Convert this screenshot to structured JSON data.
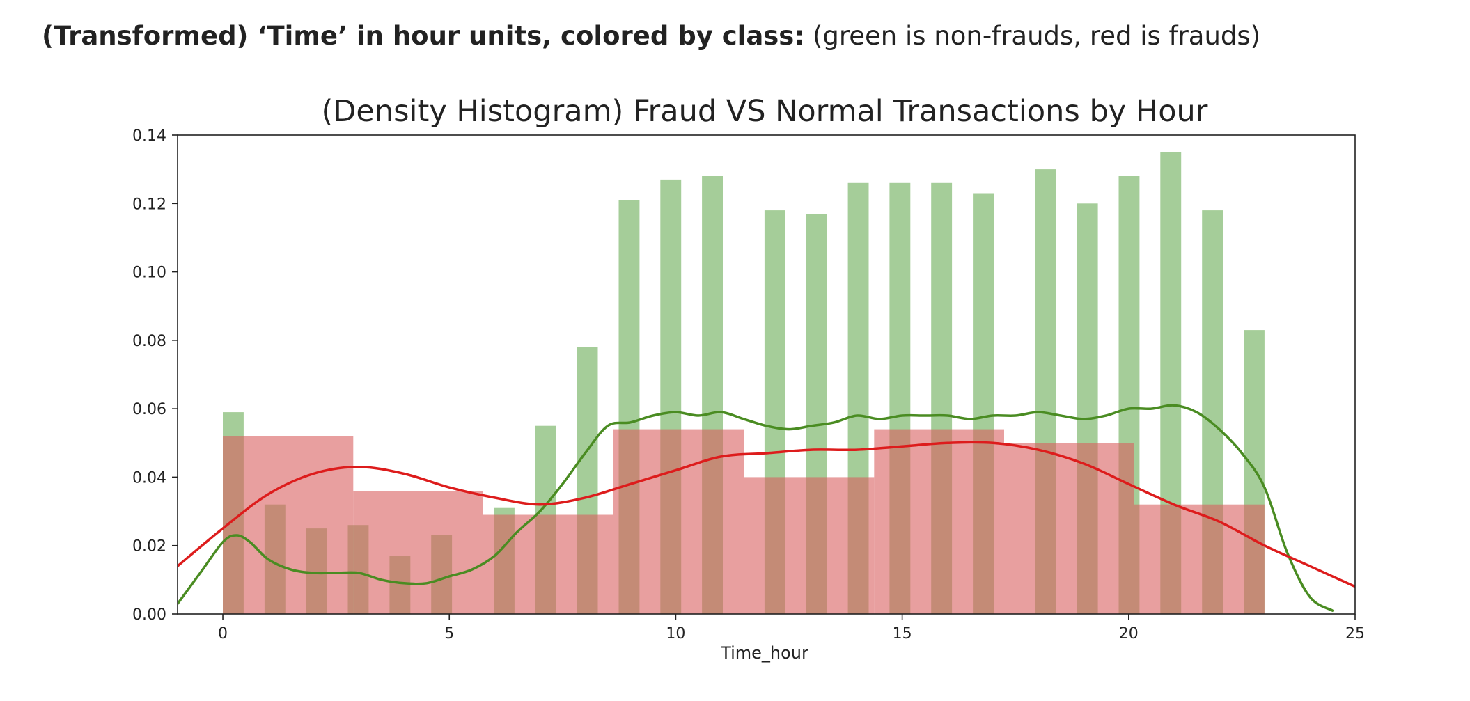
{
  "caption": {
    "bold_text": "(Transformed) ‘Time’ in hour units, colored by class:",
    "normal_text": "(green is non-frauds, red is frauds)"
  },
  "colors": {
    "normal_bar": "#7fb86e",
    "normal_line": "#4a8c22",
    "fraud_bar": "#d95f5f",
    "fraud_line": "#dd1c1c"
  },
  "chart_data": {
    "type": "bar",
    "title": "(Density Histogram) Fraud VS Normal Transactions by Hour",
    "xlabel": "Time_hour",
    "ylabel": "",
    "xlim": [
      -1,
      25
    ],
    "ylim": [
      0,
      0.14
    ],
    "xticks": [
      0,
      5,
      10,
      15,
      20,
      25
    ],
    "yticks": [
      "0.00",
      "0.02",
      "0.04",
      "0.06",
      "0.08",
      "0.10",
      "0.12",
      "0.14"
    ],
    "grid": false,
    "series": [
      {
        "kind": "histogram",
        "bins": [
          {
            "x0": 0.0,
            "x1": 0.46,
            "value": 0.059
          },
          {
            "x0": 0.92,
            "x1": 1.38,
            "value": 0.032
          },
          {
            "x0": 1.84,
            "x1": 2.3,
            "value": 0.025
          },
          {
            "x0": 2.76,
            "x1": 3.22,
            "value": 0.026
          },
          {
            "x0": 3.68,
            "x1": 4.14,
            "value": 0.017
          },
          {
            "x0": 4.6,
            "x1": 5.06,
            "value": 0.023
          },
          {
            "x0": 5.98,
            "x1": 6.44,
            "value": 0.031
          },
          {
            "x0": 6.9,
            "x1": 7.36,
            "value": 0.055
          },
          {
            "x0": 7.82,
            "x1": 8.28,
            "value": 0.078
          },
          {
            "x0": 8.74,
            "x1": 9.2,
            "value": 0.121
          },
          {
            "x0": 9.66,
            "x1": 10.12,
            "value": 0.127
          },
          {
            "x0": 10.58,
            "x1": 11.04,
            "value": 0.128
          },
          {
            "x0": 11.96,
            "x1": 12.42,
            "value": 0.118
          },
          {
            "x0": 12.88,
            "x1": 13.34,
            "value": 0.117
          },
          {
            "x0": 13.8,
            "x1": 14.26,
            "value": 0.126
          },
          {
            "x0": 14.72,
            "x1": 15.18,
            "value": 0.126
          },
          {
            "x0": 15.64,
            "x1": 16.1,
            "value": 0.126
          },
          {
            "x0": 16.56,
            "x1": 17.02,
            "value": 0.123
          },
          {
            "x0": 17.94,
            "x1": 18.4,
            "value": 0.13
          },
          {
            "x0": 18.86,
            "x1": 19.32,
            "value": 0.12
          },
          {
            "x0": 19.78,
            "x1": 20.24,
            "value": 0.128
          },
          {
            "x0": 20.7,
            "x1": 21.16,
            "value": 0.135
          },
          {
            "x0": 21.62,
            "x1": 22.08,
            "value": 0.118
          },
          {
            "x0": 22.54,
            "x1": 23.0,
            "value": 0.083
          }
        ]
      },
      {
        "kind": "histogram",
        "bins": [
          {
            "x0": 0.0,
            "x1": 2.88,
            "value": 0.052
          },
          {
            "x0": 2.88,
            "x1": 5.75,
            "value": 0.036
          },
          {
            "x0": 5.75,
            "x1": 8.62,
            "value": 0.029
          },
          {
            "x0": 8.62,
            "x1": 11.5,
            "value": 0.054
          },
          {
            "x0": 11.5,
            "x1": 14.38,
            "value": 0.04
          },
          {
            "x0": 14.38,
            "x1": 17.25,
            "value": 0.054
          },
          {
            "x0": 17.25,
            "x1": 20.12,
            "value": 0.05
          },
          {
            "x0": 20.12,
            "x1": 23.0,
            "value": 0.032
          }
        ]
      },
      {
        "kind": "kde",
        "x": [
          -1,
          -0.5,
          0,
          0.3,
          0.6,
          1,
          1.5,
          2,
          2.5,
          3,
          3.5,
          4,
          4.5,
          5,
          5.5,
          6,
          6.5,
          7,
          7.5,
          8,
          8.5,
          9,
          9.5,
          10,
          10.5,
          11,
          11.5,
          12,
          12.5,
          13,
          13.5,
          14,
          14.5,
          15,
          15.5,
          16,
          16.5,
          17,
          17.5,
          18,
          18.5,
          19,
          19.5,
          20,
          20.5,
          21,
          21.5,
          22,
          22.5,
          23,
          23.5,
          24,
          24.5
        ],
        "y": [
          0.003,
          0.012,
          0.021,
          0.023,
          0.021,
          0.016,
          0.013,
          0.012,
          0.012,
          0.012,
          0.01,
          0.009,
          0.009,
          0.011,
          0.013,
          0.017,
          0.024,
          0.03,
          0.038,
          0.047,
          0.055,
          0.056,
          0.058,
          0.059,
          0.058,
          0.059,
          0.057,
          0.055,
          0.054,
          0.055,
          0.056,
          0.058,
          0.057,
          0.058,
          0.058,
          0.058,
          0.057,
          0.058,
          0.058,
          0.059,
          0.058,
          0.057,
          0.058,
          0.06,
          0.06,
          0.061,
          0.059,
          0.054,
          0.047,
          0.037,
          0.018,
          0.005,
          0.001
        ]
      },
      {
        "kind": "kde",
        "x": [
          -1,
          0,
          1,
          2,
          3,
          4,
          5,
          6,
          7,
          8,
          9,
          10,
          11,
          12,
          13,
          14,
          15,
          16,
          17,
          18,
          19,
          20,
          21,
          22,
          23,
          24,
          25
        ],
        "y": [
          0.014,
          0.025,
          0.035,
          0.041,
          0.043,
          0.041,
          0.037,
          0.034,
          0.032,
          0.034,
          0.038,
          0.042,
          0.046,
          0.047,
          0.048,
          0.048,
          0.049,
          0.05,
          0.05,
          0.048,
          0.044,
          0.038,
          0.032,
          0.027,
          0.02,
          0.014,
          0.008
        ]
      }
    ]
  }
}
